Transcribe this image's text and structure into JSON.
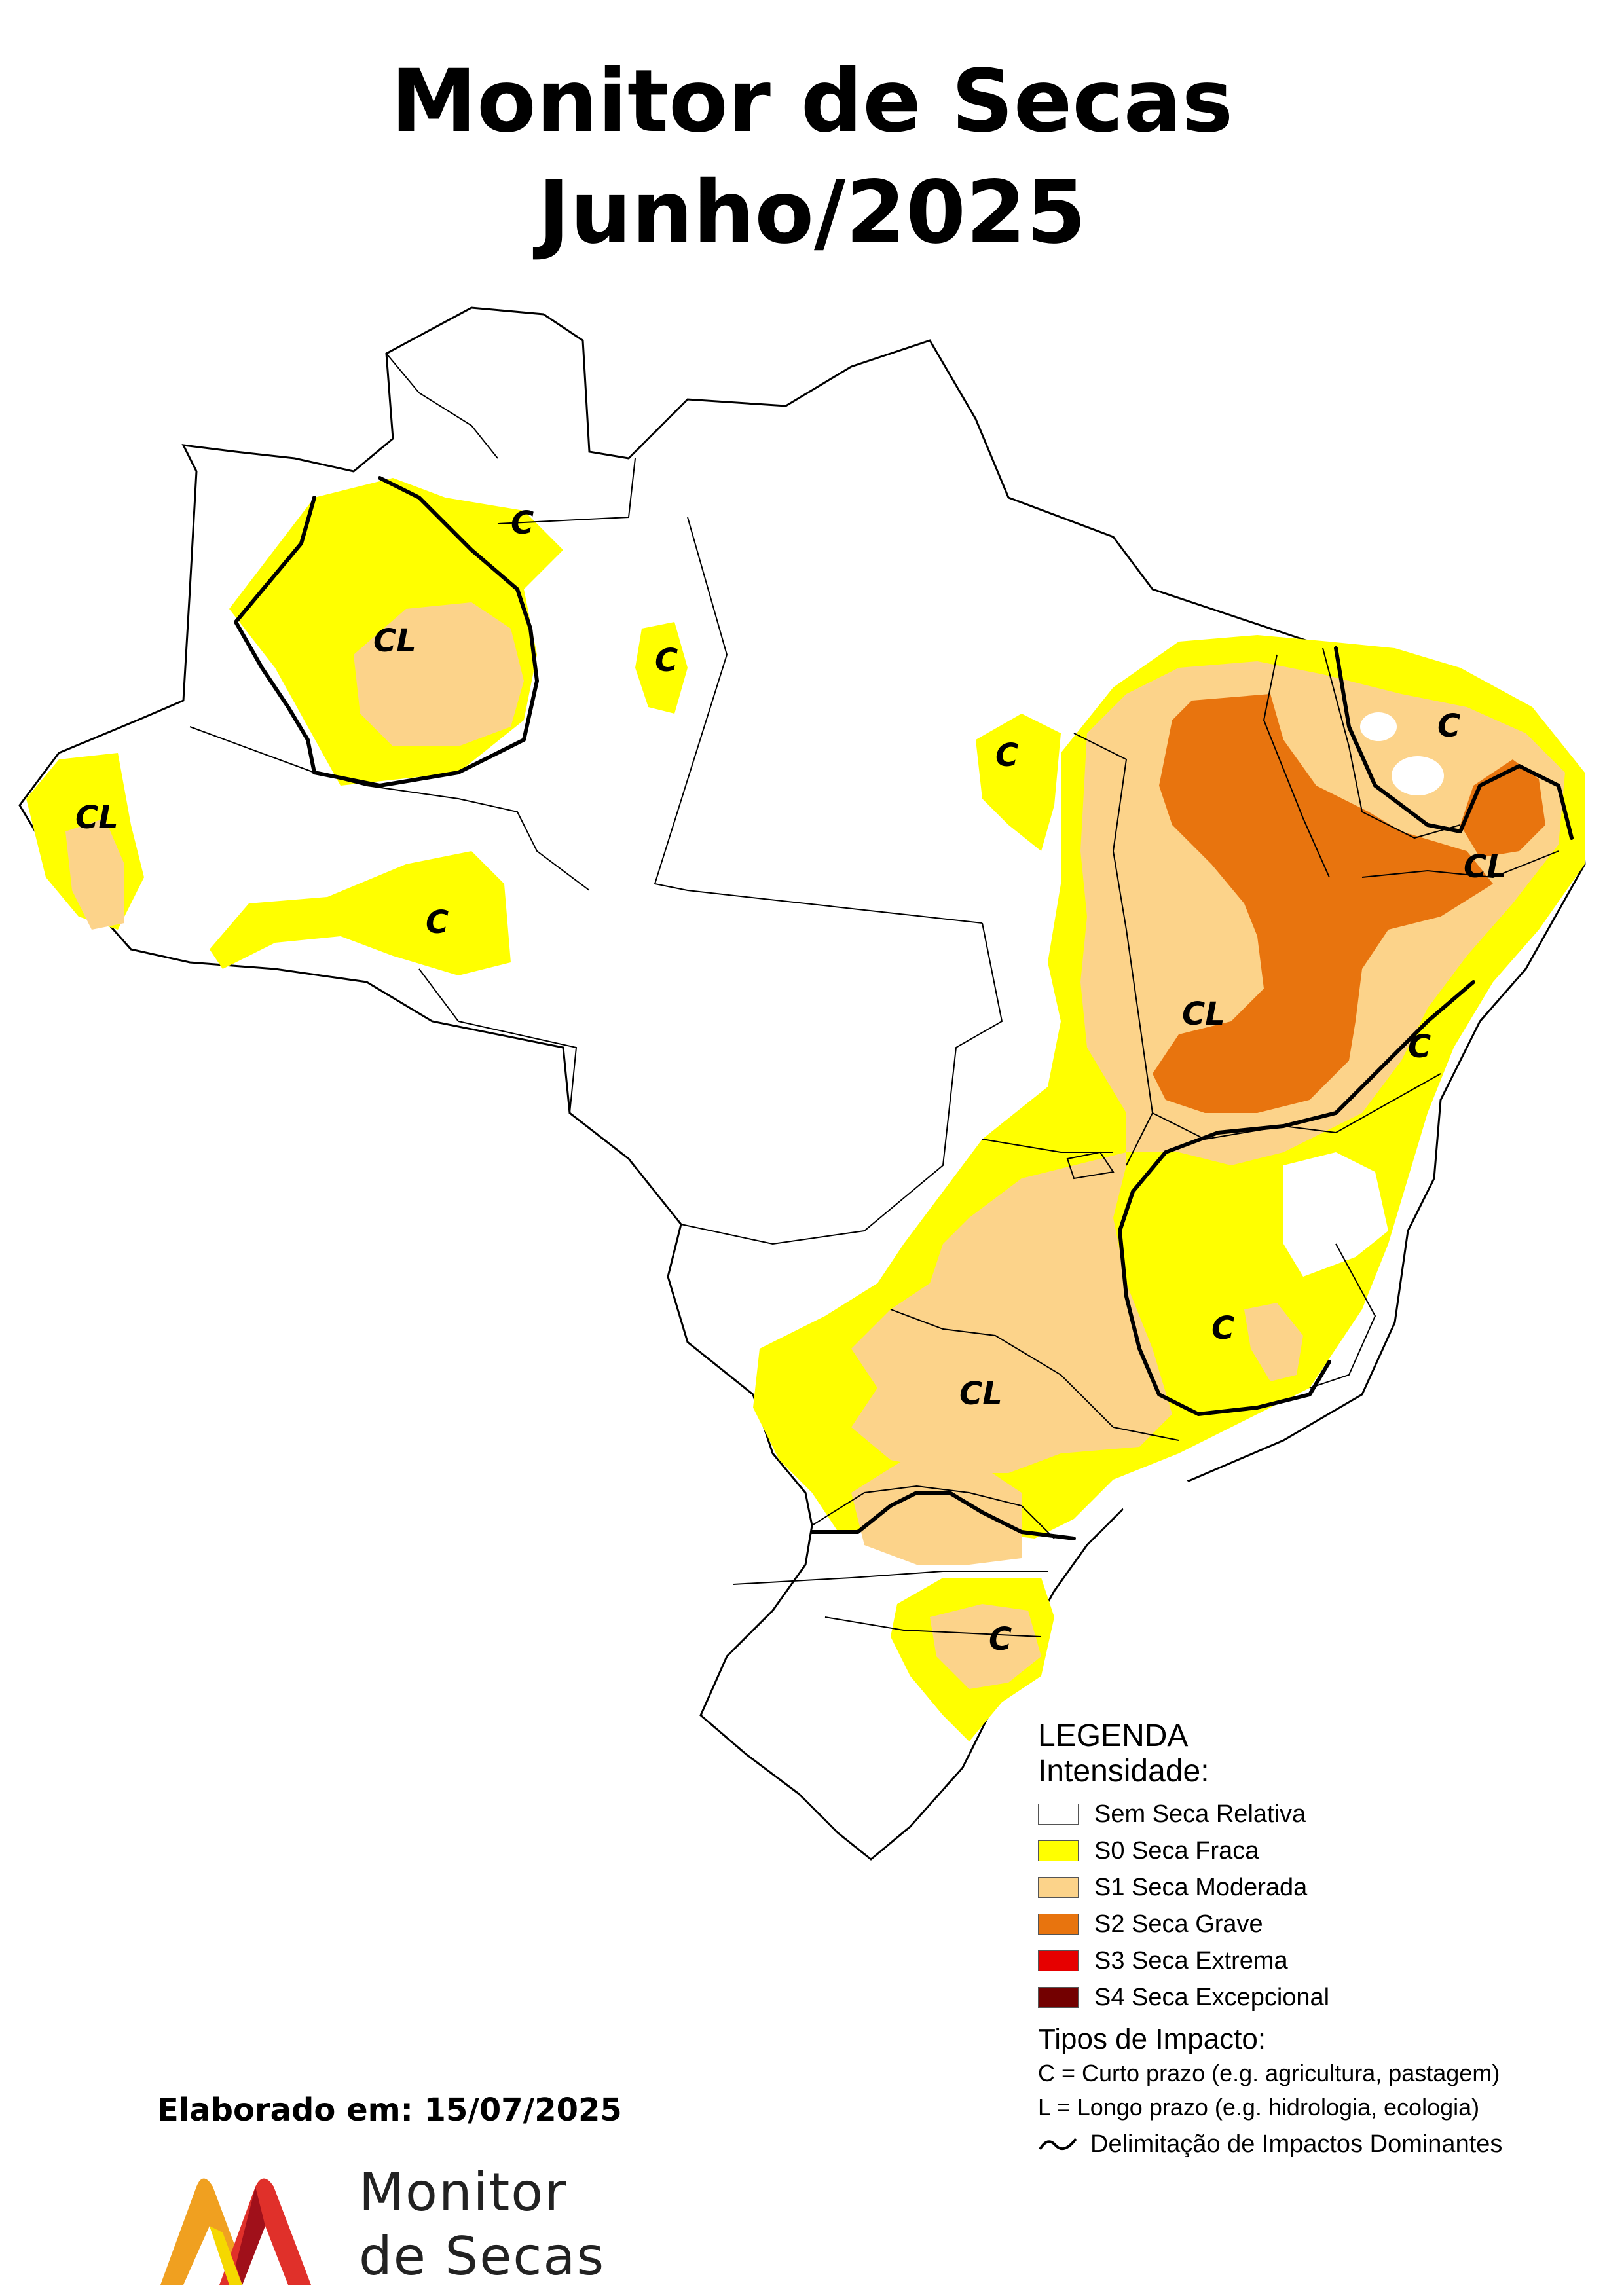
{
  "title": {
    "line1": "Monitor de Secas",
    "line2": "Junho/2025"
  },
  "map": {
    "regions": [
      "CL",
      "C",
      "C",
      "CL",
      "C",
      "C",
      "C",
      "CL",
      "CL",
      "C",
      "C",
      "CL",
      "C"
    ]
  },
  "legend": {
    "heading": "LEGENDA",
    "intensity_heading": "Intensidade:",
    "items": [
      {
        "label": "Sem Seca Relativa",
        "color": "#ffffff"
      },
      {
        "label": "S0 Seca Fraca",
        "color": "#ffff00"
      },
      {
        "label": "S1 Seca Moderada",
        "color": "#fcd38a"
      },
      {
        "label": "S2 Seca Grave",
        "color": "#e8740e"
      },
      {
        "label": "S3 Seca Extrema",
        "color": "#e60000"
      },
      {
        "label": "S4 Seca Excepcional",
        "color": "#730000"
      }
    ],
    "impact_heading": "Tipos de Impacto:",
    "impact_short": "C = Curto prazo (e.g. agricultura, pastagem)",
    "impact_long": "L = Longo prazo (e.g. hidrologia, ecologia)",
    "delimitation": "Delimitação de Impactos Dominantes"
  },
  "footer": {
    "made_on": "Elaborado em: 15/07/2025",
    "logo_line1": "Monitor",
    "logo_line2": "de Secas"
  }
}
